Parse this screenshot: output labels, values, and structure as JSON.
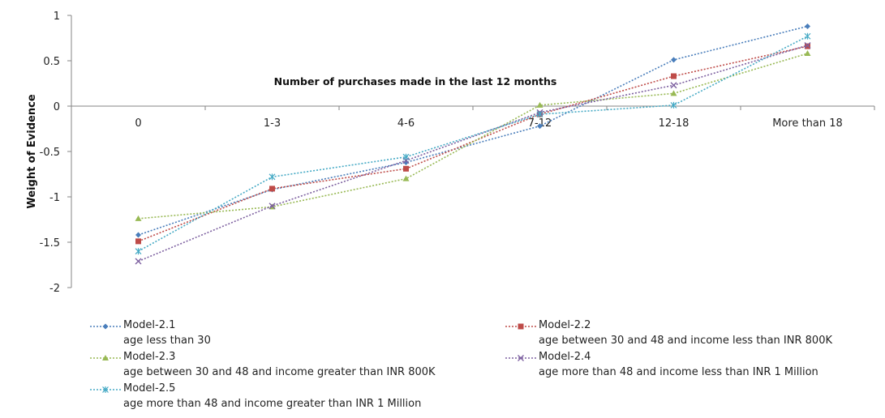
{
  "chart_data": {
    "type": "line",
    "title": "Number of purchases made in the last 12 months",
    "xlabel": "",
    "ylabel": "Weight of Evidence",
    "categories": [
      "0",
      "1-3",
      "4-6",
      "7-12",
      "12-18",
      "More than 18"
    ],
    "ylim": [
      -2,
      1
    ],
    "yticks": [
      1,
      0.5,
      0,
      -0.5,
      -1,
      -1.5,
      -2
    ],
    "ytick_labels": [
      "1",
      "0.5",
      "0",
      "-0.5",
      "-1",
      "-1.5",
      "-2"
    ],
    "grid": false,
    "legend_position": "bottom",
    "series": [
      {
        "name": "Model-2.1",
        "description": "age less than 30",
        "color": "#4a7ebb",
        "marker": "diamond",
        "values": [
          -1.42,
          -0.92,
          -0.62,
          -0.22,
          0.51,
          0.88
        ]
      },
      {
        "name": "Model-2.2",
        "description": "age between 30 and 48 and income less than INR 800K",
        "color": "#be4b48",
        "marker": "square",
        "values": [
          -1.49,
          -0.91,
          -0.69,
          -0.09,
          0.33,
          0.66
        ]
      },
      {
        "name": "Model-2.3",
        "description": "age between 30 and 48 and income greater than INR 800K",
        "color": "#98b954",
        "marker": "triangle",
        "values": [
          -1.24,
          -1.11,
          -0.8,
          0.01,
          0.14,
          0.58
        ]
      },
      {
        "name": "Model-2.4",
        "description": "age more than 48 and income less than INR 1 Million",
        "color": "#7d60a0",
        "marker": "x",
        "values": [
          -1.71,
          -1.1,
          -0.6,
          -0.07,
          0.23,
          0.67
        ]
      },
      {
        "name": "Model-2.5",
        "description": "age more than 48 and income greater than INR 1 Million",
        "color": "#46aac5",
        "marker": "star",
        "values": [
          -1.6,
          -0.78,
          -0.56,
          -0.09,
          0.01,
          0.77
        ]
      }
    ]
  }
}
